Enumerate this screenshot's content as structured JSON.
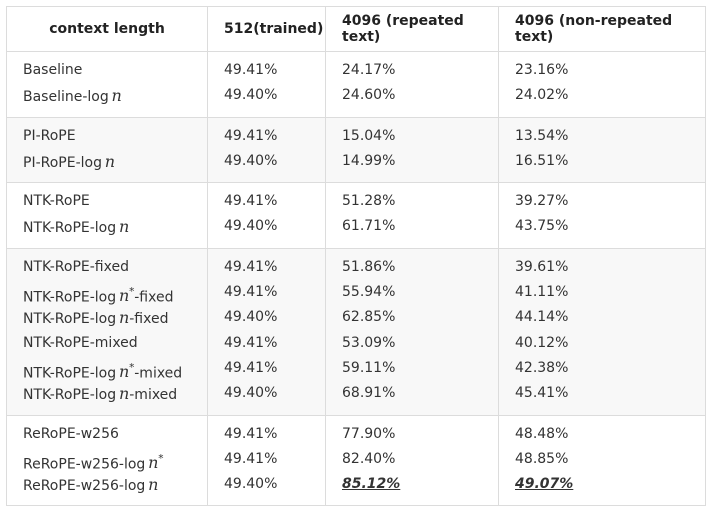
{
  "header": {
    "col0": "context length",
    "col1": "512(trained)",
    "col2": "4096 (repeated text)",
    "col3": "4096 (non-repeated text)"
  },
  "groups": [
    {
      "rows": [
        {
          "method": "Baseline",
          "v512": "49.41%",
          "rep": "24.17%",
          "nonrep": "23.16%"
        },
        {
          "method": "Baseline-log",
          "math": "n",
          "v512": "49.40%",
          "rep": "24.60%",
          "nonrep": "24.02%"
        }
      ]
    },
    {
      "rows": [
        {
          "method": "PI-RoPE",
          "v512": "49.41%",
          "rep": "15.04%",
          "nonrep": "13.54%"
        },
        {
          "method": "PI-RoPE-log",
          "math": "n",
          "v512": "49.40%",
          "rep": "14.99%",
          "nonrep": "16.51%"
        }
      ]
    },
    {
      "rows": [
        {
          "method": "NTK-RoPE",
          "v512": "49.41%",
          "rep": "51.28%",
          "nonrep": "39.27%"
        },
        {
          "method": "NTK-RoPE-log",
          "math": "n",
          "v512": "49.40%",
          "rep": "61.71%",
          "nonrep": "43.75%"
        }
      ]
    },
    {
      "rows": [
        {
          "method": "NTK-RoPE-fixed",
          "v512": "49.41%",
          "rep": "51.86%",
          "nonrep": "39.61%"
        },
        {
          "method": "NTK-RoPE-log",
          "math": "n",
          "sup": "*",
          "suffix": "-fixed",
          "v512": "49.41%",
          "rep": "55.94%",
          "nonrep": "41.11%"
        },
        {
          "method": "NTK-RoPE-log",
          "math": "n",
          "suffix": "-fixed",
          "v512": "49.40%",
          "rep": "62.85%",
          "nonrep": "44.14%"
        },
        {
          "method": "NTK-RoPE-mixed",
          "v512": "49.41%",
          "rep": "53.09%",
          "nonrep": "40.12%"
        },
        {
          "method": "NTK-RoPE-log",
          "math": "n",
          "sup": "*",
          "suffix": "-mixed",
          "v512": "49.41%",
          "rep": "59.11%",
          "nonrep": "42.38%"
        },
        {
          "method": "NTK-RoPE-log",
          "math": "n",
          "suffix": "-mixed",
          "v512": "49.40%",
          "rep": "68.91%",
          "nonrep": "45.41%"
        }
      ]
    },
    {
      "rows": [
        {
          "method": "ReRoPE-w256",
          "v512": "49.41%",
          "rep": "77.90%",
          "nonrep": "48.48%"
        },
        {
          "method": "ReRoPE-w256-log",
          "math": "n",
          "sup": "*",
          "v512": "49.41%",
          "rep": "82.40%",
          "nonrep": "48.85%"
        },
        {
          "method": "ReRoPE-w256-log",
          "math": "n",
          "v512": "49.40%",
          "rep": "85.12%",
          "nonrep": "49.07%",
          "best": true
        }
      ]
    }
  ]
}
